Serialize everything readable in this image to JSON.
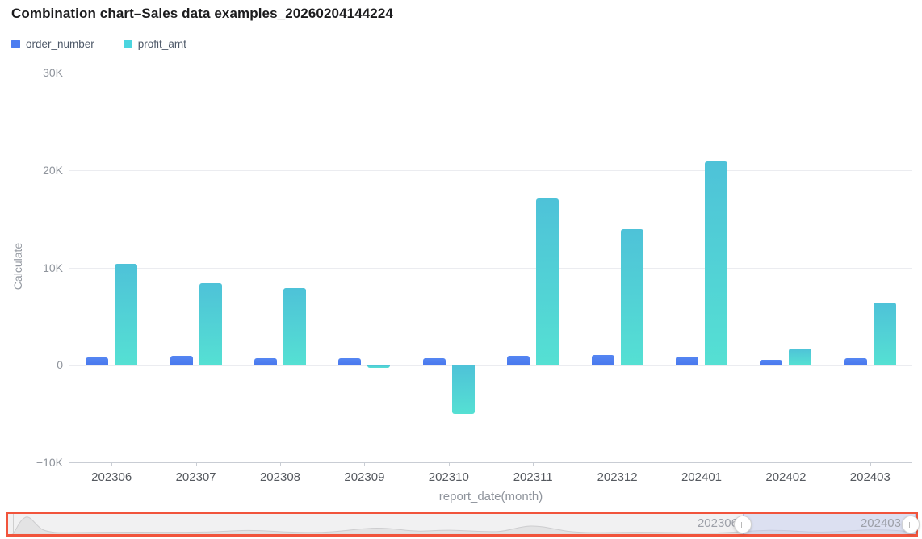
{
  "page": {
    "title": "Combination chart–Sales data examples_20260204144224"
  },
  "legend": {
    "items": [
      {
        "label": "order_number",
        "color": "#4C7DF0"
      },
      {
        "label": "profit_amt",
        "color": "#4BD5DF"
      }
    ]
  },
  "chart_data": {
    "type": "bar",
    "title": "Combination chart–Sales data examples_20260204144224",
    "categories": [
      "202306",
      "202307",
      "202308",
      "202309",
      "202310",
      "202311",
      "202312",
      "202401",
      "202402",
      "202403"
    ],
    "series": [
      {
        "name": "order_number",
        "color": "#4C7DF0",
        "values": [
          780,
          940,
          700,
          700,
          650,
          900,
          1000,
          860,
          530,
          720
        ]
      },
      {
        "name": "profit_amt",
        "color": "#4BD5DF",
        "values": [
          10400,
          8400,
          7900,
          -300,
          -5000,
          17100,
          13900,
          20900,
          1700,
          6400
        ]
      }
    ],
    "xlabel": "report_date(month)",
    "ylabel": "Calculate",
    "ylim": [
      -10000,
      30000
    ],
    "yticks": [
      {
        "label": "30K",
        "value": 30000
      },
      {
        "label": "20K",
        "value": 20000
      },
      {
        "label": "10K",
        "value": 10000
      },
      {
        "label": "0",
        "value": 0
      },
      {
        "label": "−10K",
        "value": -10000
      }
    ],
    "grid": true,
    "legend_position": "top-left"
  },
  "datazoom": {
    "start_label": "202306",
    "end_label": "202403",
    "highlight_color": "#F1543C"
  },
  "colors": {
    "bar_blue": "#4C7DF0",
    "bar_teal_top": "#4EC2D8",
    "bar_teal_bottom": "#55E0D3",
    "gridline": "#EBECF0",
    "axis_line": "#C9CDD4",
    "tick_text": "#55595f",
    "axis_title_text": "#8F949C",
    "slider_highlight_border": "#F1543C",
    "slider_window_fill": "#D6DCF6"
  }
}
